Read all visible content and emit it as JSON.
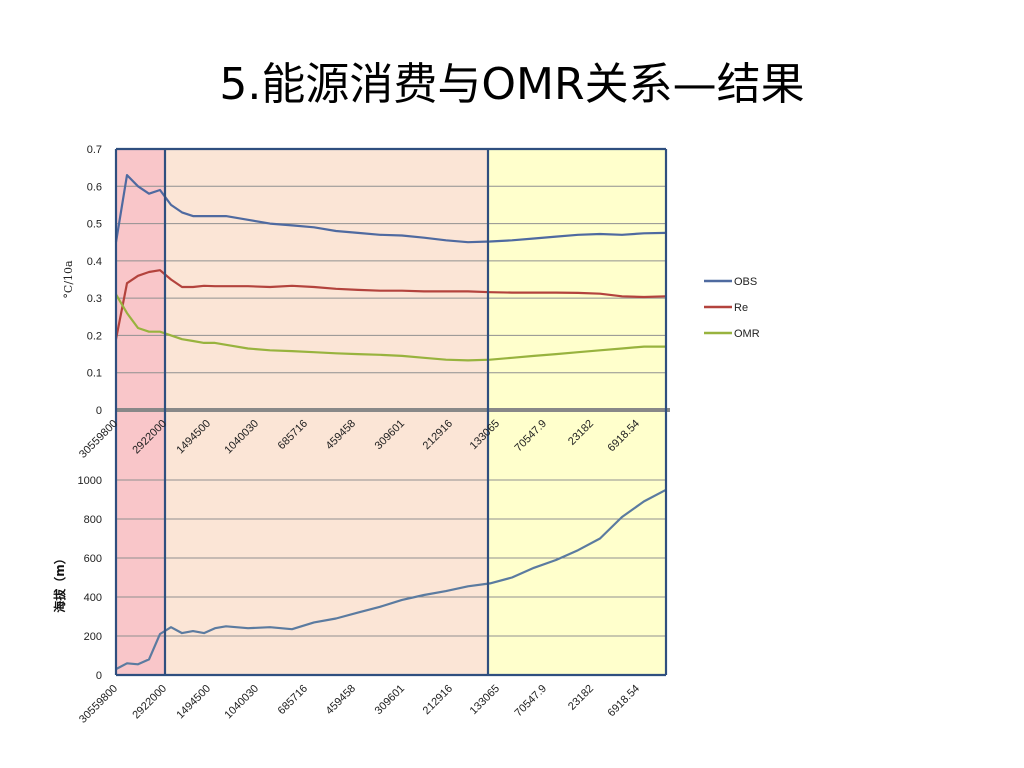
{
  "slide": {
    "title": "5.能源消费与OMR关系—结果"
  },
  "colors": {
    "band_pink": "#f9c6c9",
    "band_peach": "#fbe5d6",
    "band_yellow": "#ffffcc",
    "divider": "#2f4f7f",
    "obs": "#4f6aa0",
    "re": "#b3433d",
    "omr": "#98b33e",
    "altitude": "#5b7ba0",
    "zero_line": "#888888"
  },
  "chart_data": [
    {
      "type": "line",
      "ylabel": "°C/10a",
      "ylim": [
        0,
        0.7
      ],
      "yticks": [
        "0",
        "0.1",
        "0.2",
        "0.3",
        "0.4",
        "0.5",
        "0.6",
        "0.7"
      ],
      "x_tick_labels": [
        "30559800",
        "2922000",
        "1494500",
        "1040030",
        "685716",
        "459458",
        "309601",
        "212916",
        "133065",
        "70547.9",
        "23182",
        "6918.54"
      ],
      "grid": "horizontal",
      "legend_position": "right",
      "x": [
        0,
        0.02,
        0.04,
        0.06,
        0.08,
        0.1,
        0.12,
        0.14,
        0.16,
        0.18,
        0.2,
        0.24,
        0.28,
        0.32,
        0.36,
        0.4,
        0.44,
        0.48,
        0.52,
        0.56,
        0.6,
        0.64,
        0.68,
        0.72,
        0.76,
        0.8,
        0.84,
        0.88,
        0.92,
        0.96,
        1.0
      ],
      "series": [
        {
          "name": "OBS",
          "values": [
            0.45,
            0.63,
            0.6,
            0.58,
            0.59,
            0.55,
            0.53,
            0.52,
            0.52,
            0.52,
            0.52,
            0.51,
            0.5,
            0.495,
            0.49,
            0.48,
            0.475,
            0.47,
            0.468,
            0.462,
            0.455,
            0.45,
            0.452,
            0.455,
            0.46,
            0.465,
            0.47,
            0.472,
            0.47,
            0.474,
            0.475
          ]
        },
        {
          "name": "Re",
          "values": [
            0.19,
            0.34,
            0.36,
            0.37,
            0.375,
            0.35,
            0.33,
            0.33,
            0.333,
            0.332,
            0.332,
            0.332,
            0.33,
            0.333,
            0.33,
            0.325,
            0.322,
            0.32,
            0.32,
            0.318,
            0.318,
            0.318,
            0.316,
            0.315,
            0.315,
            0.315,
            0.314,
            0.312,
            0.305,
            0.303,
            0.305
          ]
        },
        {
          "name": "OMR",
          "values": [
            0.31,
            0.26,
            0.22,
            0.21,
            0.21,
            0.2,
            0.19,
            0.185,
            0.18,
            0.18,
            0.175,
            0.165,
            0.16,
            0.158,
            0.155,
            0.152,
            0.15,
            0.148,
            0.145,
            0.14,
            0.135,
            0.133,
            0.135,
            0.14,
            0.145,
            0.15,
            0.155,
            0.16,
            0.165,
            0.17,
            0.17
          ]
        }
      ]
    },
    {
      "type": "line",
      "ylabel": "海拔（m）",
      "ylim": [
        0,
        1000
      ],
      "yticks": [
        "0",
        "200",
        "400",
        "600",
        "800",
        "1000"
      ],
      "x_tick_labels": [
        "30559800",
        "2922000",
        "1494500",
        "1040030",
        "685716",
        "459458",
        "309601",
        "212916",
        "133065",
        "70547.9",
        "23182",
        "6918.54"
      ],
      "grid": "horizontal",
      "x": [
        0,
        0.02,
        0.04,
        0.06,
        0.08,
        0.1,
        0.12,
        0.14,
        0.16,
        0.18,
        0.2,
        0.24,
        0.28,
        0.32,
        0.36,
        0.4,
        0.44,
        0.48,
        0.52,
        0.56,
        0.6,
        0.64,
        0.68,
        0.72,
        0.76,
        0.8,
        0.84,
        0.88,
        0.92,
        0.96,
        1.0
      ],
      "series": [
        {
          "name": "",
          "values": [
            30,
            60,
            55,
            80,
            210,
            245,
            215,
            225,
            215,
            240,
            250,
            240,
            245,
            235,
            270,
            290,
            320,
            350,
            385,
            410,
            430,
            455,
            470,
            500,
            550,
            590,
            640,
            700,
            810,
            890,
            950
          ]
        }
      ]
    }
  ]
}
